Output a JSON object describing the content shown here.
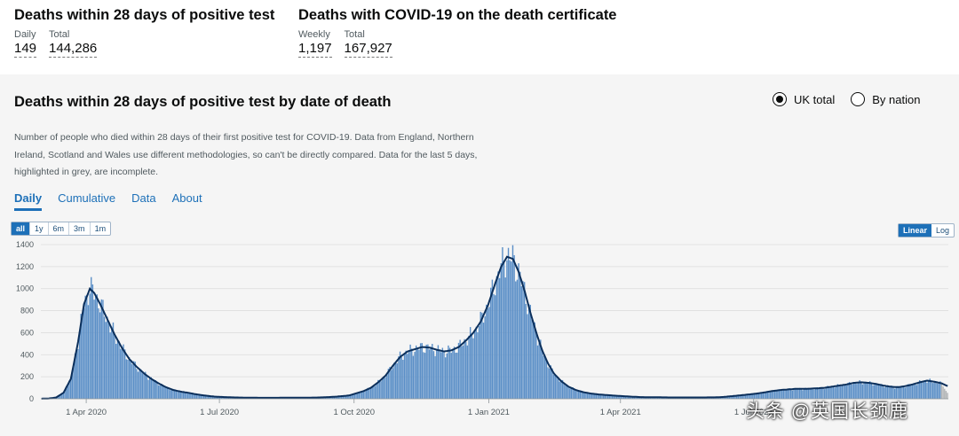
{
  "headline": {
    "group1": {
      "title": "Deaths within 28 days of positive test",
      "daily_label": "Daily",
      "daily_value": "149",
      "total_label": "Total",
      "total_value": "144,286"
    },
    "group2": {
      "title": "Deaths with COVID-19 on the death certificate",
      "weekly_label": "Weekly",
      "weekly_value": "1,197",
      "total_label": "Total",
      "total_value": "167,927"
    }
  },
  "card": {
    "title": "Deaths within 28 days of positive test by date of death",
    "radios": [
      {
        "label": "UK total",
        "selected": true
      },
      {
        "label": "By nation",
        "selected": false
      }
    ],
    "description": "Number of people who died within 28 days of their first positive test for COVID-19. Data from England, Northern Ireland, Scotland and Wales use different methodologies, so can't be directly compared. Data for the last 5 days, highlighted in grey, are incomplete.",
    "tabs": [
      {
        "label": "Daily",
        "active": true
      },
      {
        "label": "Cumulative"
      },
      {
        "label": "Data"
      },
      {
        "label": "About"
      }
    ],
    "range_buttons": [
      {
        "label": "all",
        "active": true
      },
      {
        "label": "1y"
      },
      {
        "label": "6m"
      },
      {
        "label": "3m"
      },
      {
        "label": "1m"
      }
    ],
    "scale_buttons": [
      {
        "label": "Linear",
        "active": true
      },
      {
        "label": "Log"
      }
    ]
  },
  "chart_data": {
    "type": "bar",
    "title": "Deaths within 28 days of positive test by date of death",
    "ylim": [
      0,
      1400
    ],
    "y_ticks": [
      "0",
      "200",
      "400",
      "600",
      "800",
      "1000",
      "1200",
      "1400"
    ],
    "x_ticks": [
      {
        "label": "1 Apr 2020",
        "day": 31
      },
      {
        "label": "1 Jul 2020",
        "day": 122
      },
      {
        "label": "1 Oct 2020",
        "day": 214
      },
      {
        "label": "1 Jan 2021",
        "day": 306
      },
      {
        "label": "1 Apr 2021",
        "day": 396
      },
      {
        "label": "1 Jul 2021",
        "day": 487
      }
    ],
    "x_start": "2020-03-01",
    "num_days": 620,
    "incomplete_days": 5,
    "series_anchors": [
      [
        0,
        1
      ],
      [
        5,
        3
      ],
      [
        10,
        12
      ],
      [
        15,
        55
      ],
      [
        20,
        180
      ],
      [
        25,
        520
      ],
      [
        29,
        860
      ],
      [
        33,
        1000
      ],
      [
        36,
        960
      ],
      [
        40,
        860
      ],
      [
        45,
        720
      ],
      [
        50,
        580
      ],
      [
        55,
        460
      ],
      [
        60,
        360
      ],
      [
        65,
        290
      ],
      [
        70,
        230
      ],
      [
        75,
        180
      ],
      [
        80,
        140
      ],
      [
        85,
        105
      ],
      [
        90,
        80
      ],
      [
        95,
        65
      ],
      [
        100,
        55
      ],
      [
        105,
        42
      ],
      [
        110,
        32
      ],
      [
        115,
        24
      ],
      [
        120,
        18
      ],
      [
        130,
        13
      ],
      [
        140,
        10
      ],
      [
        150,
        9
      ],
      [
        160,
        9
      ],
      [
        170,
        10
      ],
      [
        180,
        10
      ],
      [
        190,
        12
      ],
      [
        200,
        18
      ],
      [
        210,
        30
      ],
      [
        215,
        50
      ],
      [
        220,
        70
      ],
      [
        225,
        100
      ],
      [
        230,
        150
      ],
      [
        235,
        210
      ],
      [
        240,
        300
      ],
      [
        245,
        380
      ],
      [
        250,
        430
      ],
      [
        255,
        450
      ],
      [
        260,
        470
      ],
      [
        265,
        465
      ],
      [
        270,
        445
      ],
      [
        275,
        430
      ],
      [
        280,
        440
      ],
      [
        285,
        470
      ],
      [
        290,
        530
      ],
      [
        295,
        600
      ],
      [
        300,
        700
      ],
      [
        305,
        850
      ],
      [
        310,
        1050
      ],
      [
        314,
        1200
      ],
      [
        318,
        1290
      ],
      [
        322,
        1270
      ],
      [
        326,
        1150
      ],
      [
        330,
        980
      ],
      [
        334,
        780
      ],
      [
        338,
        600
      ],
      [
        342,
        440
      ],
      [
        346,
        320
      ],
      [
        350,
        230
      ],
      [
        355,
        160
      ],
      [
        360,
        110
      ],
      [
        365,
        80
      ],
      [
        370,
        60
      ],
      [
        375,
        48
      ],
      [
        380,
        40
      ],
      [
        385,
        35
      ],
      [
        390,
        30
      ],
      [
        395,
        26
      ],
      [
        400,
        22
      ],
      [
        405,
        18
      ],
      [
        410,
        15
      ],
      [
        420,
        14
      ],
      [
        430,
        12
      ],
      [
        440,
        12
      ],
      [
        450,
        12
      ],
      [
        460,
        13
      ],
      [
        465,
        16
      ],
      [
        470,
        22
      ],
      [
        475,
        28
      ],
      [
        480,
        35
      ],
      [
        485,
        42
      ],
      [
        490,
        50
      ],
      [
        495,
        60
      ],
      [
        500,
        72
      ],
      [
        505,
        80
      ],
      [
        510,
        85
      ],
      [
        515,
        90
      ],
      [
        520,
        90
      ],
      [
        525,
        92
      ],
      [
        530,
        95
      ],
      [
        535,
        100
      ],
      [
        540,
        110
      ],
      [
        545,
        120
      ],
      [
        550,
        130
      ],
      [
        555,
        145
      ],
      [
        560,
        150
      ],
      [
        565,
        145
      ],
      [
        570,
        135
      ],
      [
        575,
        120
      ],
      [
        580,
        110
      ],
      [
        585,
        105
      ],
      [
        590,
        115
      ],
      [
        595,
        130
      ],
      [
        600,
        150
      ],
      [
        605,
        165
      ],
      [
        610,
        155
      ],
      [
        615,
        140
      ],
      [
        619,
        115
      ]
    ],
    "color_bars": "#5b8fc7",
    "color_line": "#0b2f5b",
    "color_incomplete": "#b1b4b6"
  },
  "watermark": "头条 @英国长颈鹿"
}
